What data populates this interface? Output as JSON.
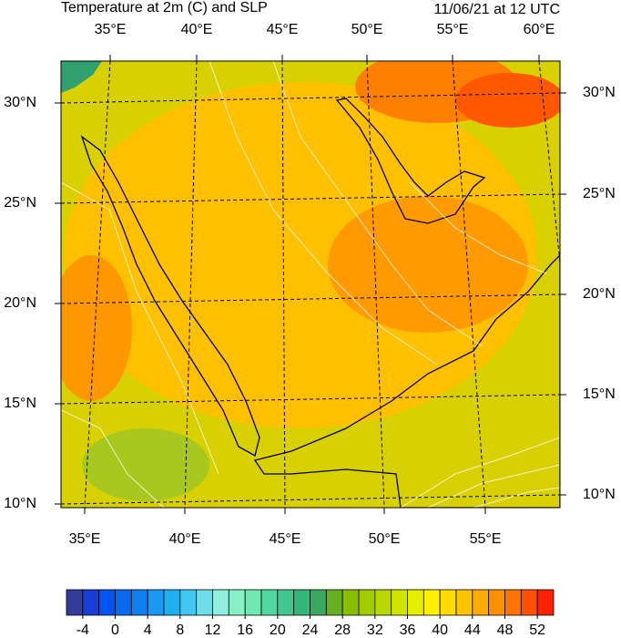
{
  "header": {
    "title": "Temperature at 2m (C) and SLP",
    "timestamp": "11/06/21 at 12 UTC"
  },
  "map": {
    "top_labels": [
      "35°E",
      "40°E",
      "45°E",
      "50°E",
      "55°E",
      "60°E"
    ],
    "bottom_labels": [
      "35°E",
      "40°E",
      "45°E",
      "50°E",
      "55°E"
    ],
    "left_labels": [
      "30°N",
      "25°N",
      "20°N",
      "15°N",
      "10°N"
    ],
    "right_labels": [
      "30°N",
      "25°N",
      "20°N",
      "15°N",
      "10°N"
    ]
  },
  "colorbar": {
    "range": [
      -6,
      54
    ],
    "ticks": [
      -4,
      0,
      4,
      8,
      12,
      16,
      20,
      24,
      28,
      32,
      36,
      40,
      44,
      48,
      52
    ],
    "colors": [
      "#333d99",
      "#1a3dd6",
      "#0055f0",
      "#0a6af0",
      "#1080f0",
      "#1898f0",
      "#20b0f0",
      "#40c8f0",
      "#70dce8",
      "#90eedd",
      "#88f0c8",
      "#70e8b0",
      "#50d8a0",
      "#40c890",
      "#30b878",
      "#3aa860",
      "#66b020",
      "#88c000",
      "#a0cc00",
      "#b8d800",
      "#d0e400",
      "#e8ee00",
      "#fff000",
      "#ffdc00",
      "#ffc400",
      "#ffaa00",
      "#ff9000",
      "#ff7400",
      "#ff5000",
      "#ff2000"
    ]
  }
}
